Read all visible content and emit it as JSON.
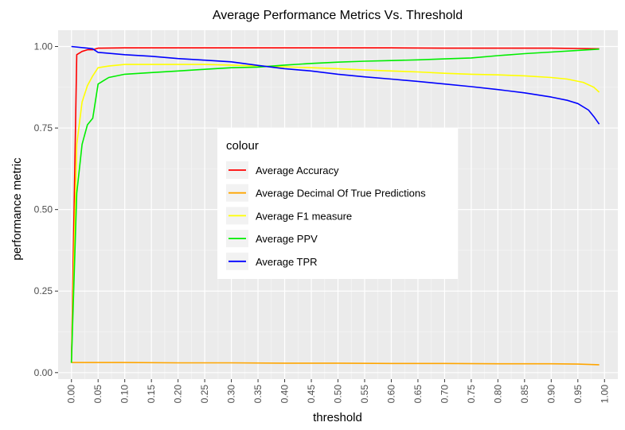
{
  "chart_data": {
    "type": "line",
    "title": "Average Performance Metrics Vs. Threshold",
    "xlabel": "threshold",
    "ylabel": "performance metric",
    "xlim": [
      -0.025,
      1.025
    ],
    "ylim": [
      -0.02,
      1.05
    ],
    "grid": true,
    "legend_position": "center",
    "legend_title": "colour",
    "x_ticks": [
      0.0,
      0.05,
      0.1,
      0.15,
      0.2,
      0.25,
      0.3,
      0.35,
      0.4,
      0.45,
      0.5,
      0.55,
      0.6,
      0.65,
      0.7,
      0.75,
      0.8,
      0.85,
      0.9,
      0.95,
      1.0
    ],
    "x_tick_labels": [
      "0.00",
      "0.05",
      "0.10",
      "0.15",
      "0.20",
      "0.25",
      "0.30",
      "0.35",
      "0.40",
      "0.45",
      "0.50",
      "0.55",
      "0.60",
      "0.65",
      "0.70",
      "0.75",
      "0.80",
      "0.85",
      "0.90",
      "0.95",
      "1.00"
    ],
    "y_ticks": [
      0.0,
      0.25,
      0.5,
      0.75,
      1.0
    ],
    "y_tick_labels": [
      "0.00",
      "0.25",
      "0.50",
      "0.75",
      "1.00"
    ],
    "series": [
      {
        "name": "Average Accuracy",
        "color": "#ff0000",
        "points": [
          [
            0.0,
            0.03
          ],
          [
            0.01,
            0.975
          ],
          [
            0.02,
            0.985
          ],
          [
            0.03,
            0.99
          ],
          [
            0.04,
            0.99
          ],
          [
            0.05,
            0.995
          ],
          [
            0.1,
            0.996
          ],
          [
            0.2,
            0.996
          ],
          [
            0.3,
            0.996
          ],
          [
            0.4,
            0.996
          ],
          [
            0.5,
            0.996
          ],
          [
            0.6,
            0.996
          ],
          [
            0.7,
            0.995
          ],
          [
            0.8,
            0.995
          ],
          [
            0.9,
            0.995
          ],
          [
            0.95,
            0.994
          ],
          [
            0.99,
            0.993
          ]
        ]
      },
      {
        "name": "Average Decimal Of True Predictions",
        "color": "#ffa500",
        "points": [
          [
            0.0,
            0.031
          ],
          [
            0.1,
            0.031
          ],
          [
            0.2,
            0.03
          ],
          [
            0.3,
            0.03
          ],
          [
            0.4,
            0.029
          ],
          [
            0.5,
            0.029
          ],
          [
            0.6,
            0.028
          ],
          [
            0.7,
            0.028
          ],
          [
            0.8,
            0.027
          ],
          [
            0.9,
            0.027
          ],
          [
            0.95,
            0.026
          ],
          [
            0.99,
            0.024
          ]
        ]
      },
      {
        "name": "Average F1 measure",
        "color": "#ffff00",
        "points": [
          [
            0.0,
            0.03
          ],
          [
            0.01,
            0.7
          ],
          [
            0.02,
            0.83
          ],
          [
            0.03,
            0.88
          ],
          [
            0.04,
            0.91
          ],
          [
            0.05,
            0.935
          ],
          [
            0.07,
            0.94
          ],
          [
            0.1,
            0.945
          ],
          [
            0.15,
            0.945
          ],
          [
            0.2,
            0.945
          ],
          [
            0.25,
            0.945
          ],
          [
            0.3,
            0.943
          ],
          [
            0.35,
            0.94
          ],
          [
            0.4,
            0.938
          ],
          [
            0.45,
            0.935
          ],
          [
            0.5,
            0.932
          ],
          [
            0.55,
            0.928
          ],
          [
            0.6,
            0.925
          ],
          [
            0.65,
            0.922
          ],
          [
            0.7,
            0.918
          ],
          [
            0.75,
            0.915
          ],
          [
            0.8,
            0.913
          ],
          [
            0.85,
            0.91
          ],
          [
            0.9,
            0.905
          ],
          [
            0.93,
            0.9
          ],
          [
            0.96,
            0.89
          ],
          [
            0.98,
            0.875
          ],
          [
            0.99,
            0.86
          ]
        ]
      },
      {
        "name": "Average PPV",
        "color": "#00ee00",
        "points": [
          [
            0.0,
            0.03
          ],
          [
            0.01,
            0.55
          ],
          [
            0.02,
            0.7
          ],
          [
            0.03,
            0.76
          ],
          [
            0.04,
            0.78
          ],
          [
            0.05,
            0.885
          ],
          [
            0.06,
            0.895
          ],
          [
            0.07,
            0.905
          ],
          [
            0.1,
            0.915
          ],
          [
            0.15,
            0.92
          ],
          [
            0.2,
            0.925
          ],
          [
            0.25,
            0.93
          ],
          [
            0.3,
            0.935
          ],
          [
            0.35,
            0.937
          ],
          [
            0.4,
            0.943
          ],
          [
            0.45,
            0.948
          ],
          [
            0.5,
            0.952
          ],
          [
            0.55,
            0.955
          ],
          [
            0.6,
            0.957
          ],
          [
            0.65,
            0.959
          ],
          [
            0.7,
            0.962
          ],
          [
            0.75,
            0.965
          ],
          [
            0.8,
            0.972
          ],
          [
            0.85,
            0.978
          ],
          [
            0.9,
            0.983
          ],
          [
            0.95,
            0.988
          ],
          [
            0.99,
            0.992
          ]
        ]
      },
      {
        "name": "Average TPR",
        "color": "#0000ff",
        "points": [
          [
            0.0,
            1.0
          ],
          [
            0.03,
            0.995
          ],
          [
            0.04,
            0.993
          ],
          [
            0.05,
            0.982
          ],
          [
            0.1,
            0.975
          ],
          [
            0.15,
            0.97
          ],
          [
            0.2,
            0.963
          ],
          [
            0.25,
            0.958
          ],
          [
            0.3,
            0.953
          ],
          [
            0.35,
            0.942
          ],
          [
            0.4,
            0.932
          ],
          [
            0.45,
            0.925
          ],
          [
            0.5,
            0.915
          ],
          [
            0.55,
            0.907
          ],
          [
            0.6,
            0.9
          ],
          [
            0.65,
            0.893
          ],
          [
            0.7,
            0.885
          ],
          [
            0.75,
            0.877
          ],
          [
            0.8,
            0.868
          ],
          [
            0.85,
            0.858
          ],
          [
            0.9,
            0.845
          ],
          [
            0.93,
            0.835
          ],
          [
            0.95,
            0.825
          ],
          [
            0.97,
            0.805
          ],
          [
            0.98,
            0.785
          ],
          [
            0.99,
            0.762
          ]
        ]
      }
    ]
  }
}
